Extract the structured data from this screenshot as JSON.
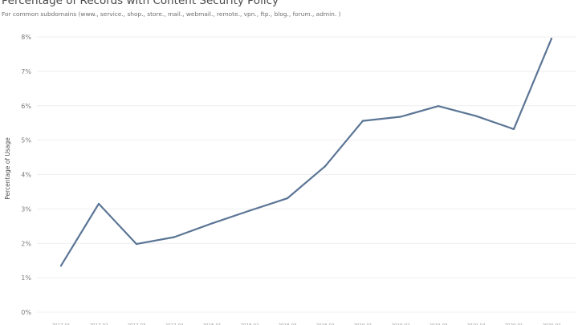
{
  "page": {
    "title": "Percentage of Records with Content Security Policy",
    "subtitle": "For common subdomains (www., service., shop., store., mail., webmail., remote., vpn., ftp., blog., forum., admin. )"
  },
  "colors": {
    "line": "#5b7595",
    "grid": "#efefef"
  },
  "chart_data": {
    "type": "line",
    "title": "Percentage of Records with Content Security Policy",
    "subtitle": "For common subdomains (www., service., shop., store., mail., webmail., remote., vpn., ftp., blog., forum., admin. )",
    "xlabel": "",
    "ylabel": "Percentage of Usage",
    "categories": [
      "2017-01",
      "2017-02",
      "2017-03",
      "2017-04",
      "2018-01",
      "2018-02",
      "2018-03",
      "2018-04",
      "2019-01",
      "2019-02",
      "2019-03",
      "2019-04",
      "2020-01",
      "2020-02"
    ],
    "values": [
      1.35,
      3.15,
      1.98,
      2.18,
      2.58,
      2.95,
      3.31,
      4.24,
      5.56,
      5.68,
      5.99,
      5.7,
      5.32,
      7.95
    ],
    "y_ticks": [
      "0%",
      "1%",
      "2%",
      "3%",
      "4%",
      "5%",
      "6%",
      "7%",
      "8%"
    ],
    "ylim": [
      0,
      8
    ],
    "grid": true,
    "legend": "none"
  }
}
